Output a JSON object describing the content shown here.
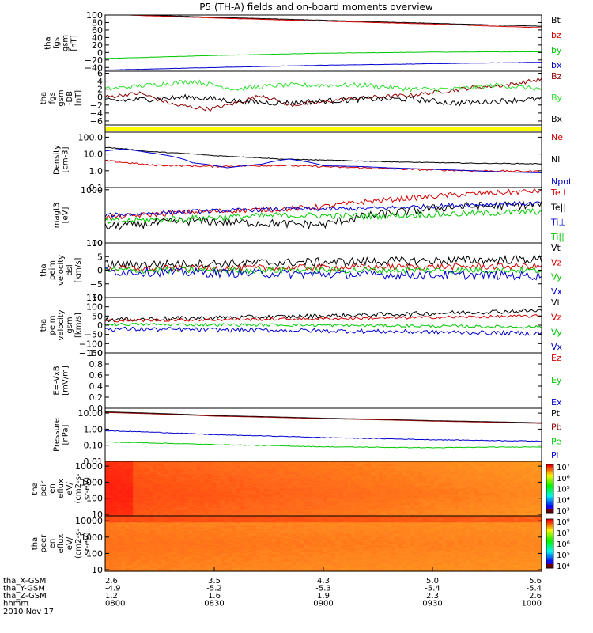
{
  "title": "P5 (TH-A) fields and on-board moments overview",
  "colors": {
    "black": "#000000",
    "red": "#d40000",
    "green": "#00c800",
    "blue": "#0000d0",
    "darkred": "#8b0000",
    "lightgreen": "#30e030",
    "yellow": "#ffff00"
  },
  "footer": {
    "rows": [
      {
        "label": "tha_X-GSM",
        "values": [
          "2.6",
          "3.5",
          "4.3",
          "5.0",
          "5.6"
        ]
      },
      {
        "label": "tha_Y-GSM",
        "values": [
          "-4.9",
          "-5.2",
          "-5.3",
          "-5.4",
          "-5.4"
        ]
      },
      {
        "label": "tha_Z-GSM",
        "values": [
          "1.2",
          "1.6",
          "1.9",
          "2.3",
          "2.6"
        ]
      },
      {
        "label": "hhmm",
        "values": [
          "0800",
          "0830",
          "0900",
          "0930",
          "1000"
        ]
      }
    ],
    "date": "2010 Nov 17"
  },
  "chart_data": [
    {
      "id": "fgs",
      "type": "line",
      "ylabel": [
        "tha",
        "fgs",
        "gsm",
        "[nT]"
      ],
      "ylim": [
        -50,
        100
      ],
      "yticks": [
        "100",
        "80",
        "60",
        "40",
        "20",
        "0",
        "−20",
        "−40"
      ],
      "legend": [
        "Bt",
        "bz",
        "by",
        "bx"
      ],
      "series": [
        {
          "name": "Bt",
          "color": "black",
          "x": [
            0,
            0.25,
            0.5,
            0.75,
            1
          ],
          "y": [
            103,
            94,
            86,
            78,
            70
          ],
          "noise": 0.4
        },
        {
          "name": "bz",
          "color": "red",
          "x": [
            0,
            0.25,
            0.5,
            0.75,
            1
          ],
          "y": [
            102,
            92,
            84,
            76,
            66
          ],
          "noise": 0.4
        },
        {
          "name": "by",
          "color": "green",
          "x": [
            0,
            0.25,
            0.5,
            0.75,
            1
          ],
          "y": [
            -16,
            -8,
            -2,
            1,
            2
          ],
          "noise": 0.4
        },
        {
          "name": "bx",
          "color": "blue",
          "x": [
            0,
            0.25,
            0.5,
            0.75,
            1
          ],
          "y": [
            -47,
            -40,
            -34,
            -30,
            -26
          ],
          "noise": 0.4
        }
      ]
    },
    {
      "id": "dbfgs",
      "type": "line",
      "ylabel": [
        "tha",
        "fgs",
        "gsm",
        "-DB",
        "[nT]"
      ],
      "ylim": [
        -7,
        6.5
      ],
      "yticks": [
        "6",
        "4",
        "2",
        "0",
        "−2",
        "−4",
        "−6"
      ],
      "legend": [
        "Bz",
        "By",
        "Bx"
      ],
      "series": [
        {
          "name": "Bz",
          "color": "darkred",
          "x": [
            0,
            0.08,
            0.16,
            0.24,
            0.3,
            0.36,
            0.42,
            0.48,
            0.55,
            0.62,
            0.7,
            0.78,
            0.85,
            0.92,
            1
          ],
          "y": [
            0,
            1,
            -2,
            -3,
            -1.5,
            0.5,
            -2,
            -1.5,
            -0.5,
            0,
            0.5,
            1.5,
            2.5,
            3,
            4.5
          ],
          "noise": 0.5
        },
        {
          "name": "By",
          "color": "lightgreen",
          "x": [
            0,
            0.1,
            0.2,
            0.3,
            0.4,
            0.5,
            0.6,
            0.7,
            0.8,
            0.9,
            1
          ],
          "y": [
            2,
            3,
            4,
            2,
            3,
            3,
            3,
            2,
            2,
            3,
            2
          ],
          "noise": 0.6
        },
        {
          "name": "Bx",
          "color": "black",
          "x": [
            0,
            0.1,
            0.2,
            0.3,
            0.4,
            0.5,
            0.6,
            0.7,
            0.8,
            0.9,
            1
          ],
          "y": [
            -1,
            -0.5,
            0,
            -1,
            -1.5,
            -1,
            -0.5,
            -0.5,
            -1.5,
            -1,
            -0.5
          ],
          "noise": 0.7
        }
      ]
    },
    {
      "id": "flag",
      "type": "bar",
      "color": "yellow"
    },
    {
      "id": "density",
      "type": "line",
      "log": true,
      "ylabel": [
        "Density",
        "[cm-3]"
      ],
      "ylim": [
        0.1,
        200
      ],
      "yticks": [
        "100.0",
        "10.0",
        "1.0",
        "0.1"
      ],
      "legend": [
        "Ne",
        "Ni",
        "Npot"
      ],
      "series": [
        {
          "name": "Ne",
          "color": "red",
          "x": [
            0,
            0.05,
            0.1,
            0.25,
            0.4,
            0.55,
            0.7,
            0.85,
            1
          ],
          "y": [
            4,
            3,
            2.2,
            1.8,
            2.1,
            1.6,
            1.2,
            1.0,
            0.9
          ],
          "noise": 0.05
        },
        {
          "name": "Ni",
          "color": "black",
          "x": [
            0,
            0.1,
            0.25,
            0.4,
            0.55,
            0.7,
            0.85,
            1
          ],
          "y": [
            25,
            14,
            8,
            5,
            4,
            3.2,
            2.8,
            2.6
          ],
          "noise": 0.02
        },
        {
          "name": "Npot",
          "color": "blue",
          "x": [
            0,
            0.04,
            0.1,
            0.2,
            0.28,
            0.36,
            0.42,
            0.5,
            0.58,
            0.65,
            0.72,
            0.8,
            0.88,
            0.95,
            1
          ],
          "y": [
            15,
            20,
            12,
            3,
            1.5,
            2.5,
            5,
            2,
            1.8,
            1.5,
            1.3,
            1.1,
            0.9,
            0.8,
            0.75
          ],
          "noise": 0
        }
      ]
    },
    {
      "id": "temp",
      "type": "line",
      "log": true,
      "ylabel": [
        "magt3",
        "[eV]"
      ],
      "ylim": [
        100,
        1100
      ],
      "yticks": [
        "1000",
        "100"
      ],
      "legend": [
        "Te⊥",
        "Te||",
        "Ti⊥",
        "Ti||"
      ],
      "series": [
        {
          "name": "Te⊥",
          "color": "red",
          "x": [
            0,
            0.2,
            0.4,
            0.5,
            0.6,
            0.8,
            1
          ],
          "y": [
            300,
            380,
            430,
            480,
            600,
            800,
            950
          ],
          "noise": 0.05
        },
        {
          "name": "Te||",
          "color": "black",
          "x": [
            0,
            0.2,
            0.4,
            0.5,
            0.6,
            0.8,
            1
          ],
          "y": [
            200,
            260,
            230,
            220,
            320,
            480,
            520
          ],
          "noise": 0.08
        },
        {
          "name": "Ti⊥",
          "color": "blue",
          "x": [
            0,
            0.2,
            0.4,
            0.6,
            0.8,
            1
          ],
          "y": [
            330,
            390,
            430,
            440,
            510,
            560
          ],
          "noise": 0.04
        },
        {
          "name": "Ti||",
          "color": "green",
          "x": [
            0,
            0.2,
            0.4,
            0.6,
            0.8,
            1
          ],
          "y": [
            250,
            290,
            330,
            320,
            350,
            390
          ],
          "noise": 0.06
        }
      ]
    },
    {
      "id": "vdsl",
      "type": "line",
      "ylabel": [
        "tha",
        "peim",
        "velocity",
        "dsl",
        "[km/s]"
      ],
      "ylim": [
        -10,
        10
      ],
      "yticks": [
        "10",
        "5",
        "0",
        "−5",
        "−10"
      ],
      "legend": [
        "Vt",
        "Vz",
        "Vy",
        "Vx"
      ],
      "series": [
        {
          "name": "Vt",
          "color": "black",
          "x": [
            0,
            0.5,
            1
          ],
          "y": [
            2,
            3,
            4
          ],
          "noise": 1.6
        },
        {
          "name": "Vz",
          "color": "red",
          "x": [
            0,
            0.5,
            1
          ],
          "y": [
            0.5,
            1,
            1.5
          ],
          "noise": 1.2
        },
        {
          "name": "Vy",
          "color": "green",
          "x": [
            0,
            0.5,
            1
          ],
          "y": [
            0,
            0,
            0
          ],
          "noise": 1.2
        },
        {
          "name": "Vx",
          "color": "blue",
          "x": [
            0,
            0.5,
            1
          ],
          "y": [
            -0.5,
            -1.5,
            -2
          ],
          "noise": 1.6
        }
      ]
    },
    {
      "id": "vgsm",
      "type": "line",
      "ylabel": [
        "tha",
        "peim",
        "velocity",
        "gsm",
        "[km/s]"
      ],
      "ylim": [
        -150,
        150
      ],
      "yticks": [
        "150",
        "100",
        "50",
        "0",
        "−50",
        "−100",
        "−150"
      ],
      "legend": [
        "Vt",
        "Vz",
        "Vy",
        "Vx"
      ],
      "series": [
        {
          "name": "Vt",
          "color": "black",
          "x": [
            0,
            0.5,
            1
          ],
          "y": [
            30,
            50,
            80
          ],
          "noise": 12
        },
        {
          "name": "Vz",
          "color": "red",
          "x": [
            0,
            0.5,
            1
          ],
          "y": [
            25,
            35,
            50
          ],
          "noise": 8
        },
        {
          "name": "Vy",
          "color": "green",
          "x": [
            0,
            0.5,
            1
          ],
          "y": [
            5,
            0,
            -10
          ],
          "noise": 8
        },
        {
          "name": "Vx",
          "color": "blue",
          "x": [
            0,
            0.5,
            1
          ],
          "y": [
            -20,
            -30,
            -45
          ],
          "noise": 12
        }
      ]
    },
    {
      "id": "efield",
      "type": "line",
      "ylabel": [
        "E=-VxB",
        "[mV/m]"
      ],
      "ylim": [
        0,
        1
      ],
      "yticks": [
        "1.0",
        "0.8",
        "0.6",
        "0.4",
        "0.2",
        "0.0"
      ],
      "legend": [
        "Ez",
        "Ey",
        "Ex"
      ],
      "series": []
    },
    {
      "id": "pressure",
      "type": "line",
      "log": true,
      "ylabel": [
        "Pressure",
        "[nPa]"
      ],
      "ylim": [
        0.01,
        20
      ],
      "yticks": [
        "10.00",
        "1.00",
        "0.10",
        "0.01"
      ],
      "legend": [
        "Pt",
        "Pb",
        "Pe",
        "Pi"
      ],
      "series": [
        {
          "name": "Pt",
          "color": "black",
          "x": [
            0,
            0.25,
            0.5,
            0.75,
            1
          ],
          "y": [
            12,
            7,
            4.8,
            3.4,
            2.5
          ],
          "noise": 0
        },
        {
          "name": "Pb",
          "color": "darkred",
          "x": [
            0,
            0.25,
            0.5,
            0.75,
            1
          ],
          "y": [
            11,
            6.5,
            4.5,
            3.2,
            2.3
          ],
          "noise": 0
        },
        {
          "name": "Pe",
          "color": "green",
          "x": [
            0,
            0.25,
            0.5,
            0.75,
            1
          ],
          "y": [
            0.16,
            0.11,
            0.08,
            0.07,
            0.08
          ],
          "noise": 0.02
        },
        {
          "name": "Pi",
          "color": "blue",
          "x": [
            0,
            0.25,
            0.5,
            0.75,
            1
          ],
          "y": [
            0.8,
            0.45,
            0.3,
            0.22,
            0.18
          ],
          "noise": 0.02
        }
      ]
    },
    {
      "id": "peir",
      "type": "heatmap",
      "log": true,
      "ylabel": [
        "tha",
        "peir",
        "en",
        "eflux",
        "eV/",
        "(cm2-s-",
        "sr-eV)"
      ],
      "ylim": [
        8,
        20000
      ],
      "yticks": [
        "10000",
        "1000",
        "100",
        "10"
      ],
      "cbar_ticks": [
        "10⁷",
        "10⁶",
        "10⁵",
        "10⁴",
        "10³"
      ],
      "profile": "ion"
    },
    {
      "id": "peer",
      "type": "heatmap",
      "log": true,
      "ylabel": [
        "tha",
        "peer",
        "en",
        "eflux",
        "eV/",
        "(cm2-s-",
        "sr-eV)"
      ],
      "ylim": [
        8,
        20000
      ],
      "yticks": [
        "10000",
        "1000",
        "100",
        "10"
      ],
      "cbar_ticks": [
        "10⁸",
        "10⁷",
        "10⁶",
        "10⁵",
        "10⁴"
      ],
      "profile": "electron"
    }
  ]
}
